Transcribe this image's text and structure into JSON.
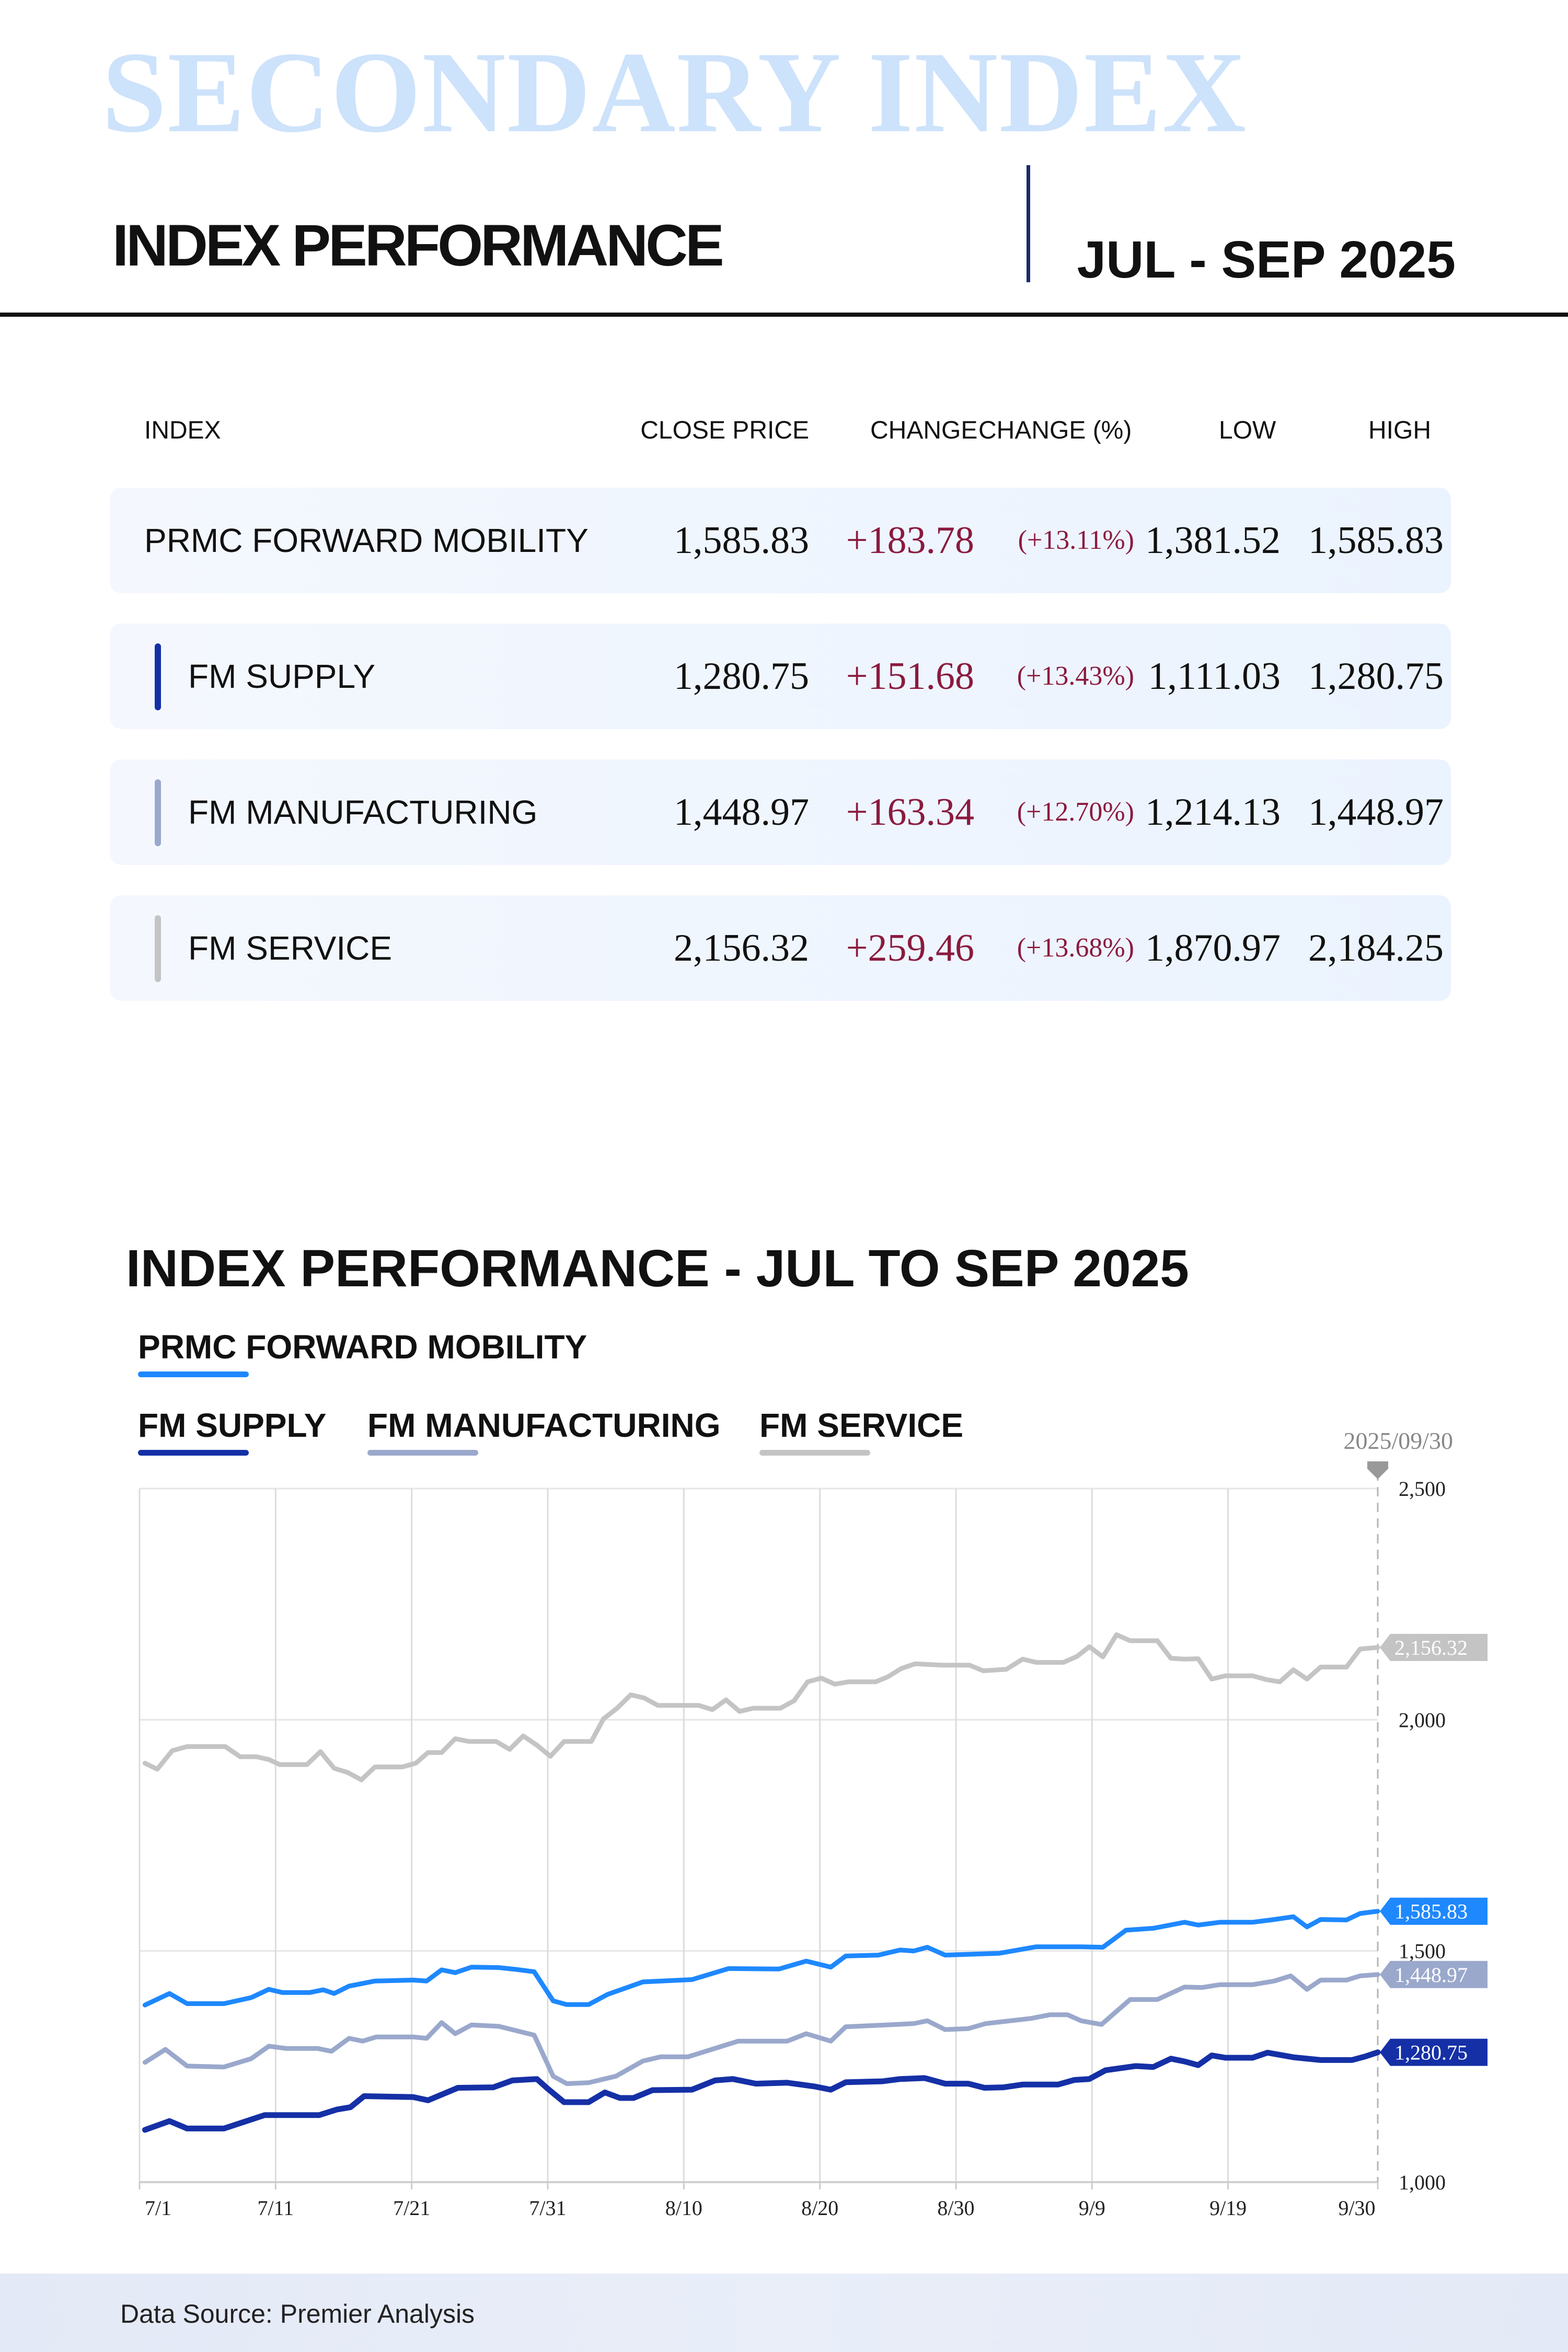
{
  "header": {
    "brand": "SECONDARY INDEX",
    "title": "INDEX PERFORMANCE",
    "period": "JUL - SEP 2025"
  },
  "table": {
    "columns": [
      "INDEX",
      "CLOSE PRICE",
      "CHANGE",
      "CHANGE (%)",
      "LOW",
      "HIGH"
    ],
    "rows": [
      {
        "name": "PRMC FORWARD MOBILITY",
        "close": "1,585.83",
        "change": "+183.78",
        "pct": "(+13.11%)",
        "low": "1,381.52",
        "high": "1,585.83",
        "color": ""
      },
      {
        "name": "FM SUPPLY",
        "close": "1,280.75",
        "change": "+151.68",
        "pct": "(+13.43%)",
        "low": "1,111.03",
        "high": "1,280.75",
        "color": "#1530a6"
      },
      {
        "name": "FM MANUFACTURING",
        "close": "1,448.97",
        "change": "+163.34",
        "pct": "(+12.70%)",
        "low": "1,214.13",
        "high": "1,448.97",
        "color": "#9aa8cc"
      },
      {
        "name": "FM SERVICE",
        "close": "2,156.32",
        "change": "+259.46",
        "pct": "(+13.68%)",
        "low": "1,870.97",
        "high": "2,184.25",
        "color": "#c4c4c4"
      }
    ]
  },
  "footer": {
    "source": "Data Source: Premier Analysis"
  },
  "chart_data": {
    "type": "line",
    "title": "INDEX PERFORMANCE - JUL TO SEP 2025",
    "xlabel": "",
    "ylabel": "",
    "x_unit": "days since 7/1/2025",
    "xlim": [
      0,
      91
    ],
    "ylim": [
      1000,
      2500
    ],
    "grid": true,
    "legend_placement": "top-left",
    "x_ticks": [
      {
        "day": 0,
        "label": "7/1"
      },
      {
        "day": 10,
        "label": "7/11"
      },
      {
        "day": 20,
        "label": "7/21"
      },
      {
        "day": 30,
        "label": "7/31"
      },
      {
        "day": 40,
        "label": "8/10"
      },
      {
        "day": 50,
        "label": "8/20"
      },
      {
        "day": 60,
        "label": "8/30"
      },
      {
        "day": 70,
        "label": "9/9"
      },
      {
        "day": 80,
        "label": "9/19"
      },
      {
        "day": 91,
        "label": "9/30"
      }
    ],
    "y_ticks": [
      {
        "value": 2500,
        "label": "2,500"
      },
      {
        "value": 2000,
        "label": "2,000"
      },
      {
        "value": 1500,
        "label": "1,500"
      },
      {
        "value": 1000,
        "label": "1,000"
      }
    ],
    "cursor": {
      "day": 91,
      "label": "2025/09/30"
    },
    "series": [
      {
        "name": "PRMC FORWARD MOBILITY",
        "color": "#1e88ff",
        "end_label": "1,585.83",
        "points": [
          [
            0.4,
            1383
          ],
          [
            2.2,
            1408
          ],
          [
            3.5,
            1386
          ],
          [
            6.2,
            1386
          ],
          [
            8.2,
            1399
          ],
          [
            9.5,
            1417
          ],
          [
            10.5,
            1410
          ],
          [
            12.5,
            1410
          ],
          [
            13.5,
            1416
          ],
          [
            14.3,
            1408
          ],
          [
            15.4,
            1424
          ],
          [
            17.3,
            1435
          ],
          [
            20.1,
            1437
          ],
          [
            21.1,
            1435
          ],
          [
            22.2,
            1459
          ],
          [
            23.2,
            1453
          ],
          [
            24.4,
            1465
          ],
          [
            26.4,
            1464
          ],
          [
            27.7,
            1460
          ],
          [
            29,
            1455
          ],
          [
            30.4,
            1392
          ],
          [
            31.4,
            1384
          ],
          [
            33,
            1384
          ],
          [
            34.4,
            1406
          ],
          [
            37,
            1433
          ],
          [
            40.6,
            1438
          ],
          [
            43.3,
            1462
          ],
          [
            47,
            1461
          ],
          [
            49,
            1478
          ],
          [
            50.8,
            1465
          ],
          [
            51.9,
            1489
          ],
          [
            54.3,
            1491
          ],
          [
            55.9,
            1502
          ],
          [
            56.9,
            1500
          ],
          [
            57.9,
            1508
          ],
          [
            59.2,
            1491
          ],
          [
            63.2,
            1495
          ],
          [
            65.9,
            1509
          ],
          [
            69.2,
            1509
          ],
          [
            70.8,
            1508
          ],
          [
            72.5,
            1545
          ],
          [
            74.5,
            1549
          ],
          [
            76.8,
            1562
          ],
          [
            77.8,
            1556
          ],
          [
            79.4,
            1562
          ],
          [
            81.8,
            1562
          ],
          [
            83.4,
            1568
          ],
          [
            84.8,
            1574
          ],
          [
            85.8,
            1552
          ],
          [
            86.8,
            1568
          ],
          [
            88.7,
            1567
          ],
          [
            89.7,
            1581
          ],
          [
            91,
            1585.83
          ]
        ]
      },
      {
        "name": "FM SUPPLY",
        "color": "#1530a6",
        "end_label": "1,280.75",
        "points": [
          [
            0.4,
            1113
          ],
          [
            2.2,
            1132
          ],
          [
            3.5,
            1116
          ],
          [
            6.2,
            1116
          ],
          [
            9.2,
            1145
          ],
          [
            13.2,
            1145
          ],
          [
            14.5,
            1157
          ],
          [
            15.5,
            1162
          ],
          [
            16.5,
            1186
          ],
          [
            20.1,
            1184
          ],
          [
            21.2,
            1177
          ],
          [
            23.4,
            1204
          ],
          [
            26,
            1205
          ],
          [
            27.4,
            1220
          ],
          [
            29.2,
            1223
          ],
          [
            30,
            1202
          ],
          [
            31.2,
            1173
          ],
          [
            33,
            1173
          ],
          [
            34.2,
            1194
          ],
          [
            35.3,
            1182
          ],
          [
            36.3,
            1182
          ],
          [
            37.7,
            1199
          ],
          [
            40.6,
            1200
          ],
          [
            42.3,
            1220
          ],
          [
            43.6,
            1223
          ],
          [
            45.3,
            1213
          ],
          [
            47.6,
            1215
          ],
          [
            49.6,
            1207
          ],
          [
            50.8,
            1200
          ],
          [
            51.9,
            1216
          ],
          [
            54.6,
            1218
          ],
          [
            55.9,
            1223
          ],
          [
            57.7,
            1225
          ],
          [
            59.2,
            1213
          ],
          [
            60.9,
            1213
          ],
          [
            62.1,
            1204
          ],
          [
            63.5,
            1205
          ],
          [
            64.9,
            1211
          ],
          [
            67.5,
            1211
          ],
          [
            68.7,
            1221
          ],
          [
            69.8,
            1223
          ],
          [
            71,
            1242
          ],
          [
            73.2,
            1251
          ],
          [
            74.5,
            1249
          ],
          [
            75.8,
            1267
          ],
          [
            76.8,
            1261
          ],
          [
            77.8,
            1253
          ],
          [
            78.8,
            1274
          ],
          [
            79.8,
            1269
          ],
          [
            81.8,
            1269
          ],
          [
            82.9,
            1280
          ],
          [
            84.8,
            1270
          ],
          [
            86.8,
            1264
          ],
          [
            89.1,
            1264
          ],
          [
            90.1,
            1272
          ],
          [
            91,
            1280.75
          ]
        ]
      },
      {
        "name": "FM MANUFACTURING",
        "color": "#9aa8cc",
        "end_label": "1,448.97",
        "points": [
          [
            0.4,
            1259
          ],
          [
            1.9,
            1287
          ],
          [
            3.5,
            1251
          ],
          [
            6.2,
            1249
          ],
          [
            8.2,
            1267
          ],
          [
            9.5,
            1294
          ],
          [
            10.8,
            1289
          ],
          [
            13.1,
            1289
          ],
          [
            14.1,
            1283
          ],
          [
            15.4,
            1311
          ],
          [
            16.4,
            1305
          ],
          [
            17.4,
            1314
          ],
          [
            20.1,
            1314
          ],
          [
            21.1,
            1311
          ],
          [
            22.2,
            1345
          ],
          [
            23.2,
            1321
          ],
          [
            24.4,
            1340
          ],
          [
            26.4,
            1337
          ],
          [
            29,
            1318
          ],
          [
            30.4,
            1229
          ],
          [
            31.4,
            1213
          ],
          [
            33,
            1215
          ],
          [
            35,
            1229
          ],
          [
            37,
            1262
          ],
          [
            38.3,
            1271
          ],
          [
            40.3,
            1271
          ],
          [
            44,
            1305
          ],
          [
            47.6,
            1305
          ],
          [
            49,
            1321
          ],
          [
            50.8,
            1305
          ],
          [
            51.9,
            1336
          ],
          [
            54.9,
            1340
          ],
          [
            56.9,
            1343
          ],
          [
            57.9,
            1349
          ],
          [
            59.2,
            1330
          ],
          [
            60.9,
            1332
          ],
          [
            62.2,
            1343
          ],
          [
            65.5,
            1354
          ],
          [
            66.9,
            1362
          ],
          [
            68.2,
            1362
          ],
          [
            69.2,
            1349
          ],
          [
            70.7,
            1341
          ],
          [
            72.8,
            1395
          ],
          [
            74.8,
            1395
          ],
          [
            76.8,
            1422
          ],
          [
            78.1,
            1421
          ],
          [
            79.4,
            1427
          ],
          [
            81.8,
            1427
          ],
          [
            83.4,
            1435
          ],
          [
            84.6,
            1446
          ],
          [
            85.8,
            1417
          ],
          [
            86.8,
            1437
          ],
          [
            88.7,
            1437
          ],
          [
            89.7,
            1446
          ],
          [
            91,
            1448.97
          ]
        ]
      },
      {
        "name": "FM SERVICE",
        "color": "#c4c4c4",
        "end_label": "2,156.32",
        "points": [
          [
            0.4,
            1906
          ],
          [
            1.3,
            1893
          ],
          [
            2.4,
            1933
          ],
          [
            3.5,
            1942
          ],
          [
            6.3,
            1942
          ],
          [
            7.4,
            1920
          ],
          [
            8.6,
            1920
          ],
          [
            9.5,
            1914
          ],
          [
            10.3,
            1903
          ],
          [
            12.3,
            1903
          ],
          [
            13.3,
            1931
          ],
          [
            14.3,
            1895
          ],
          [
            15.3,
            1886
          ],
          [
            16.3,
            1870
          ],
          [
            17.3,
            1898
          ],
          [
            19.3,
            1898
          ],
          [
            20.3,
            1906
          ],
          [
            21.2,
            1929
          ],
          [
            22.2,
            1929
          ],
          [
            23.2,
            1959
          ],
          [
            24.2,
            1953
          ],
          [
            26.2,
            1953
          ],
          [
            27.2,
            1936
          ],
          [
            28.2,
            1965
          ],
          [
            29.2,
            1945
          ],
          [
            30.2,
            1921
          ],
          [
            31.2,
            1953
          ],
          [
            33.2,
            1953
          ],
          [
            34.1,
            2002
          ],
          [
            35.1,
            2025
          ],
          [
            36.1,
            2054
          ],
          [
            37.1,
            2047
          ],
          [
            38.1,
            2031
          ],
          [
            41.1,
            2031
          ],
          [
            42.1,
            2022
          ],
          [
            43.1,
            2043
          ],
          [
            44.1,
            2018
          ],
          [
            45.1,
            2025
          ],
          [
            47.1,
            2025
          ],
          [
            48.1,
            2041
          ],
          [
            49.1,
            2082
          ],
          [
            50.1,
            2090
          ],
          [
            51.1,
            2077
          ],
          [
            52.1,
            2082
          ],
          [
            54.1,
            2082
          ],
          [
            55,
            2093
          ],
          [
            56,
            2111
          ],
          [
            57,
            2121
          ],
          [
            59,
            2118
          ],
          [
            61,
            2118
          ],
          [
            62,
            2106
          ],
          [
            63.7,
            2109
          ],
          [
            64.9,
            2131
          ],
          [
            65.9,
            2124
          ],
          [
            67.9,
            2124
          ],
          [
            68.9,
            2137
          ],
          [
            69.8,
            2158
          ],
          [
            70.8,
            2136
          ],
          [
            71.8,
            2184
          ],
          [
            72.8,
            2171
          ],
          [
            74.8,
            2171
          ],
          [
            75.8,
            2133
          ],
          [
            76.8,
            2131
          ],
          [
            77.8,
            2132
          ],
          [
            78.8,
            2088
          ],
          [
            79.8,
            2095
          ],
          [
            81.8,
            2095
          ],
          [
            82.8,
            2087
          ],
          [
            83.8,
            2082
          ],
          [
            84.8,
            2108
          ],
          [
            85.8,
            2088
          ],
          [
            86.8,
            2114
          ],
          [
            88.7,
            2114
          ],
          [
            89.7,
            2153
          ],
          [
            91,
            2156.32
          ]
        ]
      }
    ]
  }
}
